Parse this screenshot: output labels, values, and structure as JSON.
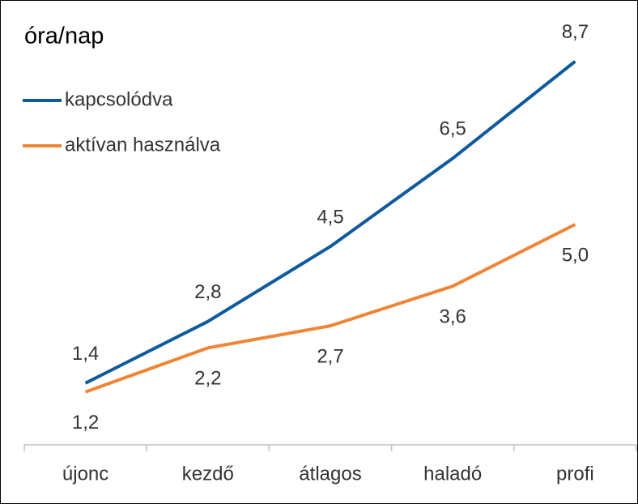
{
  "chart_data": {
    "type": "line",
    "title": "óra/nap",
    "categories": [
      "újonc",
      "kezdő",
      "átlagos",
      "haladó",
      "profi"
    ],
    "series": [
      {
        "name": "kapcsolódva",
        "color": "#0f5a9c",
        "values": [
          1.4,
          2.8,
          4.5,
          6.5,
          8.7
        ],
        "value_labels": [
          "1,4",
          "2,8",
          "4,5",
          "6,5",
          "8,7"
        ],
        "label_position": "above"
      },
      {
        "name": "aktívan használva",
        "color": "#ef8535",
        "values": [
          1.2,
          2.2,
          2.7,
          3.6,
          5.0
        ],
        "value_labels": [
          "1,2",
          "2,2",
          "2,7",
          "3,6",
          "5,0"
        ],
        "label_position": "below"
      }
    ],
    "ylim": [
      0,
      10
    ],
    "legend": "top-left"
  }
}
